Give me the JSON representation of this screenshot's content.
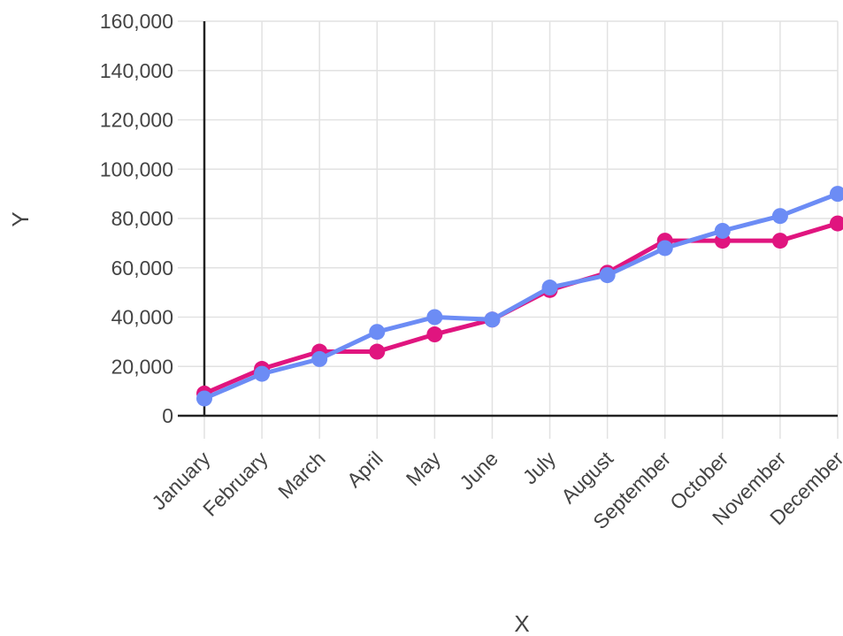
{
  "chart_data": {
    "type": "line",
    "title": "",
    "xlabel": "X",
    "ylabel": "Y",
    "categories": [
      "January",
      "February",
      "March",
      "April",
      "May",
      "June",
      "July",
      "August",
      "September",
      "October",
      "November",
      "December"
    ],
    "ylim": [
      0,
      160000
    ],
    "y_ticks": [
      0,
      20000,
      40000,
      60000,
      80000,
      100000,
      120000,
      140000,
      160000
    ],
    "y_tick_labels": [
      "0",
      "20,000",
      "40,000",
      "60,000",
      "80,000",
      "100,000",
      "120,000",
      "140,000",
      "160,000"
    ],
    "grid": true,
    "legend": "none",
    "series": [
      {
        "color": "#e0157f",
        "values": [
          9000,
          19000,
          26000,
          26000,
          33000,
          39000,
          51000,
          58000,
          71000,
          71000,
          71000,
          78000
        ]
      },
      {
        "color": "#6c8cf5",
        "values": [
          7000,
          17000,
          23000,
          34000,
          40000,
          39000,
          52000,
          57000,
          68000,
          75000,
          81000,
          90000
        ]
      }
    ]
  }
}
